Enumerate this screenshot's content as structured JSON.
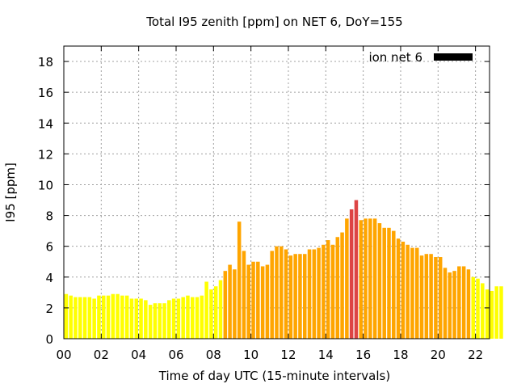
{
  "chart_data": {
    "type": "bar",
    "title": "Total I95 zenith [ppm] on NET 6, DoY=155",
    "xlabel": "Time of day UTC (15-minute intervals)",
    "ylabel": "I95 [ppm]",
    "legend": {
      "label": "ion net 6",
      "position": "top-right",
      "swatch_color": "#000000"
    },
    "xlim": [
      0,
      22.75
    ],
    "ylim": [
      0,
      19
    ],
    "x_ticks": [
      "00",
      "02",
      "04",
      "06",
      "08",
      "10",
      "12",
      "14",
      "16",
      "18",
      "20",
      "22"
    ],
    "y_ticks": [
      "0",
      "2",
      "4",
      "6",
      "8",
      "10",
      "12",
      "14",
      "16",
      "18"
    ],
    "grid": true,
    "colors": {
      "low": "#ffff00",
      "mid": "#ffa500",
      "high": "#dd4444"
    },
    "interval_hours": 0.25,
    "values": [
      2.9,
      2.8,
      2.7,
      2.7,
      2.7,
      2.7,
      2.6,
      2.8,
      2.8,
      2.8,
      2.9,
      2.9,
      2.8,
      2.8,
      2.6,
      2.6,
      2.6,
      2.5,
      2.2,
      2.3,
      2.3,
      2.3,
      2.5,
      2.6,
      2.6,
      2.7,
      2.8,
      2.7,
      2.7,
      2.8,
      3.7,
      3.2,
      3.4,
      3.8,
      4.4,
      4.8,
      4.5,
      7.6,
      5.7,
      4.8,
      5.0,
      5.0,
      4.7,
      4.8,
      5.7,
      6.0,
      6.0,
      5.8,
      5.4,
      5.5,
      5.5,
      5.5,
      5.8,
      5.8,
      5.9,
      6.1,
      6.4,
      6.1,
      6.6,
      6.9,
      7.8,
      8.4,
      9.0,
      7.7,
      7.8,
      7.8,
      7.8,
      7.5,
      7.2,
      7.2,
      7.0,
      6.5,
      6.3,
      6.1,
      5.9,
      5.9,
      5.4,
      5.5,
      5.5,
      5.3,
      5.3,
      4.6,
      4.3,
      4.4,
      4.7,
      4.7,
      4.5,
      4.0,
      3.9,
      3.6,
      3.2,
      3.1,
      3.4,
      3.4
    ],
    "color_levels": [
      "low",
      "low",
      "low",
      "low",
      "low",
      "low",
      "low",
      "low",
      "low",
      "low",
      "low",
      "low",
      "low",
      "low",
      "low",
      "low",
      "low",
      "low",
      "low",
      "low",
      "low",
      "low",
      "low",
      "low",
      "low",
      "low",
      "low",
      "low",
      "low",
      "low",
      "low",
      "low",
      "low",
      "low",
      "mid",
      "mid",
      "mid",
      "mid",
      "mid",
      "mid",
      "mid",
      "mid",
      "mid",
      "mid",
      "mid",
      "mid",
      "mid",
      "mid",
      "mid",
      "mid",
      "mid",
      "mid",
      "mid",
      "mid",
      "mid",
      "mid",
      "mid",
      "mid",
      "mid",
      "mid",
      "mid",
      "high",
      "high",
      "mid",
      "mid",
      "mid",
      "mid",
      "mid",
      "mid",
      "mid",
      "mid",
      "mid",
      "mid",
      "mid",
      "mid",
      "mid",
      "mid",
      "mid",
      "mid",
      "mid",
      "mid",
      "mid",
      "mid",
      "mid",
      "mid",
      "mid",
      "mid",
      "low",
      "low",
      "low",
      "low",
      "low",
      "low",
      "low"
    ]
  }
}
